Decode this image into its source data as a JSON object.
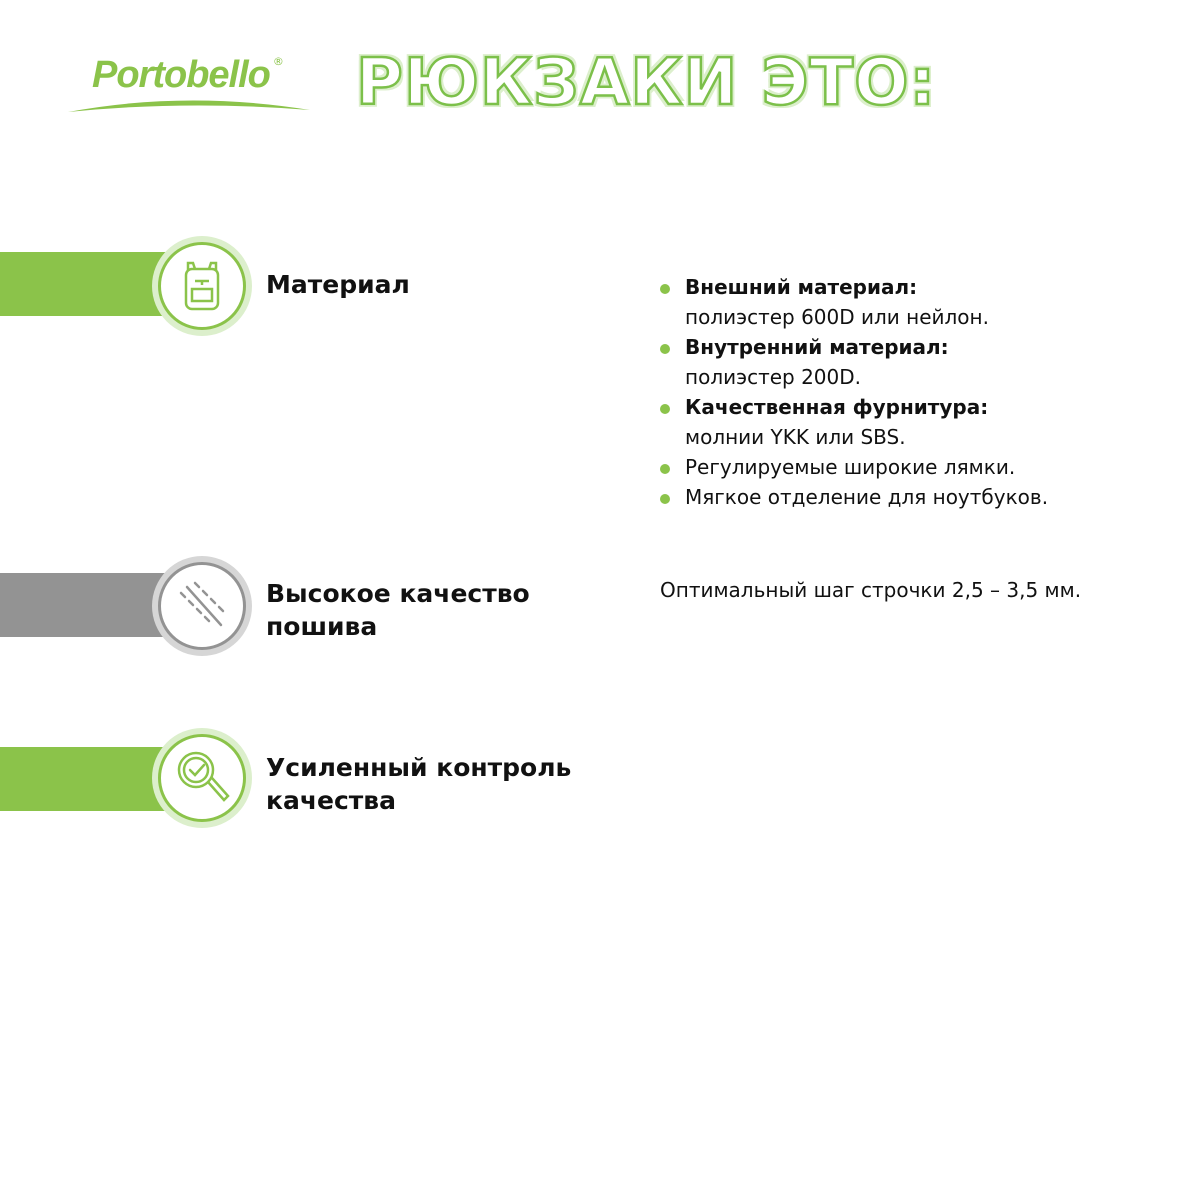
{
  "brand": {
    "logo_text": "Portobello",
    "registered": "®"
  },
  "headline": "РЮКЗАКИ ЭТО:",
  "colors": {
    "accent": "#8bc34a",
    "accent_light": "#dcefcc",
    "gray": "#939393",
    "gray_light": "#d6d6d6"
  },
  "features": [
    {
      "title": "Материал",
      "icon": "backpack-icon",
      "color": "green",
      "bullets": [
        {
          "bold": "Внешний материал:",
          "text": "полиэстер 600D или нейлон."
        },
        {
          "bold": "Внутренний материал:",
          "text": "полиэстер 200D."
        },
        {
          "bold": "Качественная фурнитура:",
          "text": "молнии YKK или SBS."
        },
        {
          "bold": "",
          "text": "Регулируемые широкие лямки."
        },
        {
          "bold": "",
          "text": "Мягкое отделение для ноутбуков."
        }
      ]
    },
    {
      "title_line1": "Высокое качество",
      "title_line2": "пошива",
      "icon": "stitch-icon",
      "color": "gray",
      "text": "Оптимальный шаг строчки 2,5 – 3,5 мм."
    },
    {
      "title_line1": "Усиленный контроль",
      "title_line2": "качества",
      "icon": "magnifier-check-icon",
      "color": "green"
    }
  ]
}
